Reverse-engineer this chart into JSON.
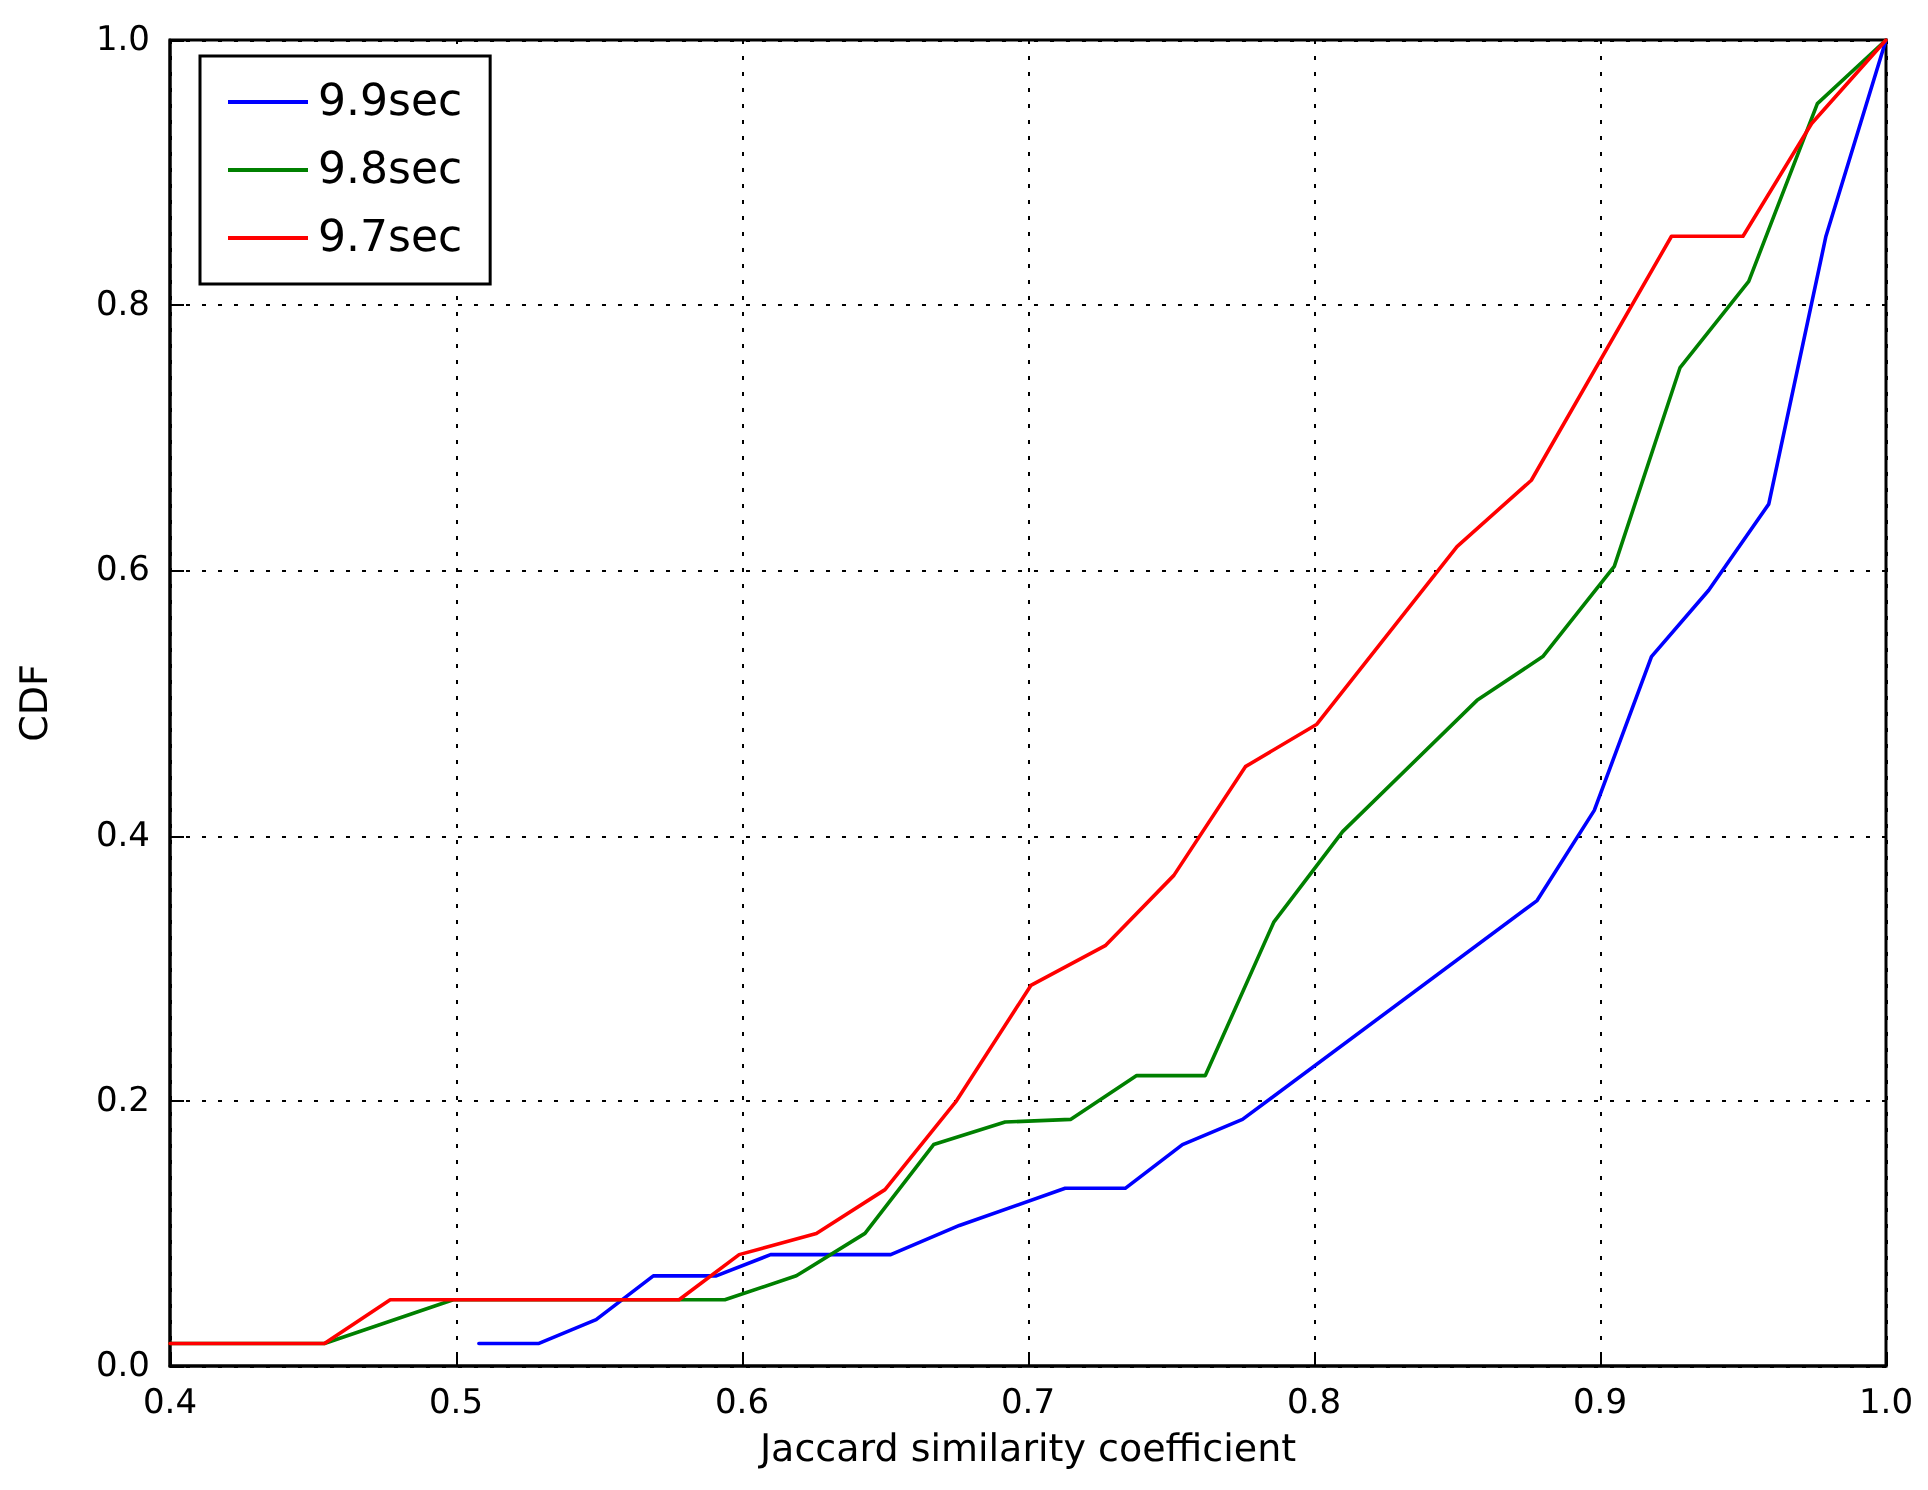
{
  "chart_data": {
    "type": "line",
    "xlabel": "Jaccard similarity coefficient",
    "ylabel": "CDF",
    "xlim": [
      0.4,
      1.0
    ],
    "xticks": [
      0.4,
      0.5,
      0.6,
      0.7,
      0.8,
      0.9,
      {
        "value": 1.0,
        "label": "1.0"
      }
    ],
    "ylim": [
      0,
      1.0
    ],
    "yticks": [
      {
        "value": 0,
        "label": "0.0"
      },
      0.2,
      0.4,
      0.6,
      0.8,
      {
        "value": 1.0,
        "label": "1.0"
      }
    ],
    "grid": true,
    "legend": "top left",
    "marker": "none",
    "line_style": "solid",
    "series": [
      {
        "name": "9.9sec",
        "color": "#0000ff",
        "x": [
          0.508,
          0.529,
          0.549,
          0.569,
          0.591,
          0.61,
          0.652,
          0.676,
          0.713,
          0.734,
          0.754,
          0.775,
          0.878,
          0.898,
          0.918,
          0.938,
          0.959,
          0.979,
          1.0
        ],
        "values": [
          0.017,
          0.017,
          0.035,
          0.068,
          0.068,
          0.084,
          0.084,
          0.106,
          0.134,
          0.134,
          0.167,
          0.186,
          0.351,
          0.419,
          0.535,
          0.585,
          0.65,
          0.852,
          1.0
        ]
      },
      {
        "name": "9.8sec",
        "color": "#008000",
        "x": [
          0.4,
          0.454,
          0.499,
          0.594,
          0.619,
          0.643,
          0.667,
          0.692,
          0.715,
          0.738,
          0.762,
          0.786,
          0.81,
          0.857,
          0.88,
          0.905,
          0.928,
          0.952,
          0.976,
          1.0
        ],
        "values": [
          0.017,
          0.017,
          0.05,
          0.05,
          0.068,
          0.1,
          0.167,
          0.184,
          0.186,
          0.219,
          0.219,
          0.335,
          0.403,
          0.502,
          0.535,
          0.603,
          0.753,
          0.818,
          0.952,
          1.0
        ]
      },
      {
        "name": "9.7sec",
        "color": "#ff0000",
        "x": [
          0.4,
          0.454,
          0.477,
          0.578,
          0.599,
          0.626,
          0.65,
          0.675,
          0.701,
          0.727,
          0.751,
          0.776,
          0.801,
          0.85,
          0.876,
          0.925,
          0.95,
          0.974,
          1.0
        ],
        "values": [
          0.017,
          0.017,
          0.05,
          0.05,
          0.084,
          0.1,
          0.133,
          0.2,
          0.287,
          0.317,
          0.37,
          0.452,
          0.484,
          0.618,
          0.668,
          0.852,
          0.852,
          0.937,
          1.0
        ]
      }
    ]
  }
}
